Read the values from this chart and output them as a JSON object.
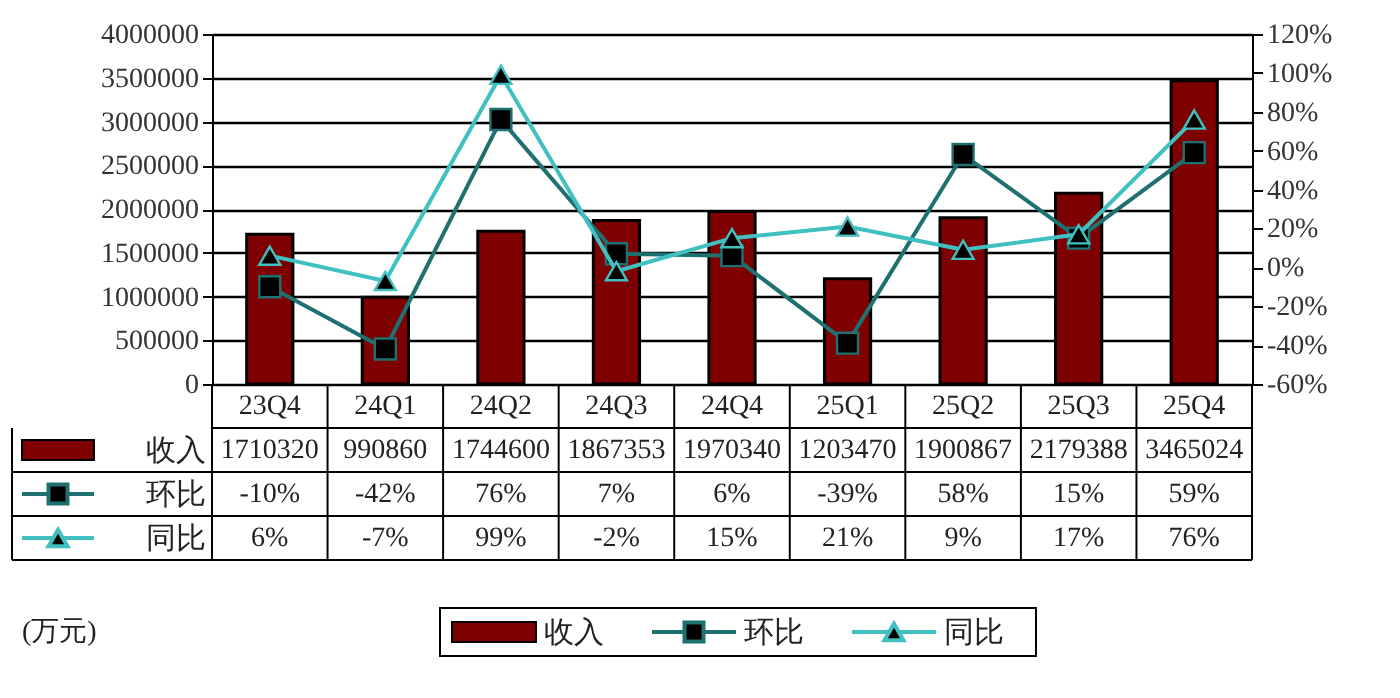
{
  "chart_data": {
    "type": "bar",
    "categories": [
      "23Q4",
      "24Q1",
      "24Q2",
      "24Q3",
      "24Q4",
      "25Q1",
      "25Q2",
      "25Q3",
      "25Q4"
    ],
    "series": [
      {
        "name": "收入",
        "color": "#7f0000",
        "values": [
          1710320,
          990860,
          1744600,
          1867353,
          1970340,
          1203470,
          1900867,
          2179388,
          3465024
        ],
        "value_labels": [
          "1710320",
          "990860",
          "1744600",
          "1867353",
          "1970340",
          "1203470",
          "1900867",
          "2179388",
          "3465024"
        ]
      },
      {
        "name": "环比",
        "type": "line",
        "axis": "y2",
        "color": "#1f7070",
        "marker": "square",
        "line_style": "solid",
        "values": [
          -10,
          -42,
          76,
          7,
          6,
          -39,
          58,
          15,
          59
        ],
        "value_labels": [
          "-10%",
          "-42%",
          "76%",
          "7%",
          "6%",
          "-39%",
          "58%",
          "15%",
          "59%"
        ]
      },
      {
        "name": "同比",
        "type": "line",
        "axis": "y2",
        "color": "#40c0c0",
        "marker": "triangle",
        "line_style": "solid",
        "values": [
          6,
          -7,
          99,
          -2,
          15,
          21,
          9,
          17,
          76
        ],
        "value_labels": [
          "6%",
          "-7%",
          "99%",
          "-2%",
          "15%",
          "21%",
          "9%",
          "17%",
          "76%"
        ]
      }
    ],
    "ylim": [
      0,
      4000000
    ],
    "yticks": [
      0,
      500000,
      1000000,
      1500000,
      2000000,
      2500000,
      3000000,
      3500000,
      4000000
    ],
    "y2lim": [
      -60,
      120
    ],
    "y2ticks": [
      {
        "value": -60,
        "label": "-60%"
      },
      {
        "value": -40,
        "label": "-40%"
      },
      {
        "value": -20,
        "label": "-20%"
      },
      {
        "value": 0,
        "label": "0%"
      },
      {
        "value": 20,
        "label": "20%"
      },
      {
        "value": 40,
        "label": "40%"
      },
      {
        "value": 60,
        "label": "60%"
      },
      {
        "value": 80,
        "label": "80%"
      },
      {
        "value": 100,
        "label": "100%"
      },
      {
        "value": 120,
        "label": "120%"
      }
    ],
    "grid": "y",
    "legend": "bottom",
    "annotations": [
      "(万元)"
    ]
  }
}
